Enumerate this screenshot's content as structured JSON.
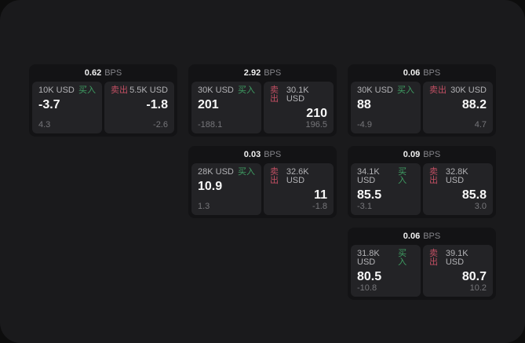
{
  "colors": {
    "page_bg": "#0d0d0d",
    "window_bg": "#1a1a1c",
    "card_bg": "#131315",
    "panel_bg": "#232326",
    "buy_color": "#3f9e63",
    "sell_color": "#c24f63",
    "value_color": "#f7f7f7",
    "amount_color": "#b3b3b6",
    "sub_color": "#76767a",
    "bps_unit_color": "#85858a"
  },
  "labels": {
    "buy": "买入",
    "sell": "卖出",
    "bps": "BPS"
  },
  "cards": [
    {
      "bps": "0.62",
      "buy": {
        "amount": "10K USD",
        "value": "-3.7",
        "sub": "4.3"
      },
      "sell": {
        "amount": "5.5K USD",
        "value": "-1.8",
        "sub": "-2.6"
      }
    },
    {
      "bps": "2.92",
      "buy": {
        "amount": "30K USD",
        "value": "201",
        "sub": "-188.1"
      },
      "sell": {
        "amount": "30.1K USD",
        "value": "210",
        "sub": "196.5"
      }
    },
    {
      "bps": "0.06",
      "buy": {
        "amount": "30K USD",
        "value": "88",
        "sub": "-4.9"
      },
      "sell": {
        "amount": "30K USD",
        "value": "88.2",
        "sub": "4.7"
      }
    },
    {
      "bps": "0.03",
      "buy": {
        "amount": "28K USD",
        "value": "10.9",
        "sub": "1.3"
      },
      "sell": {
        "amount": "32.6K USD",
        "value": "11",
        "sub": "-1.8"
      }
    },
    {
      "bps": "0.09",
      "buy": {
        "amount": "34.1K USD",
        "value": "85.5",
        "sub": "-3.1"
      },
      "sell": {
        "amount": "32.8K USD",
        "value": "85.8",
        "sub": "3.0"
      }
    },
    {
      "bps": "0.06",
      "buy": {
        "amount": "31.8K USD",
        "value": "80.5",
        "sub": "-10.8"
      },
      "sell": {
        "amount": "39.1K USD",
        "value": "80.7",
        "sub": "10.2"
      }
    }
  ]
}
